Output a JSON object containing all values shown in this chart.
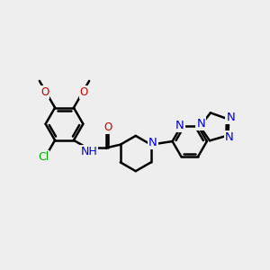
{
  "background_color": "#eeeeee",
  "bond_color": "#000000",
  "bond_width": 1.8,
  "atom_colors": {
    "O": "#cc0000",
    "N": "#0000cc",
    "Cl": "#00aa00",
    "C": "#000000",
    "H": "#000000"
  },
  "font_size": 8.5,
  "fig_width": 3.0,
  "fig_height": 3.0,
  "dpi": 100,
  "xlim": [
    0,
    12
  ],
  "ylim": [
    0,
    12
  ]
}
